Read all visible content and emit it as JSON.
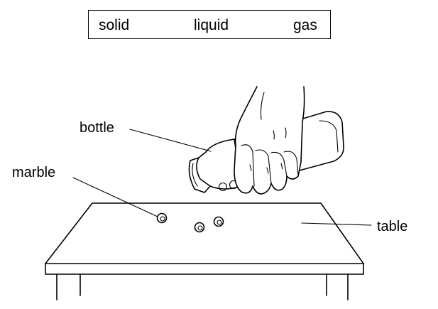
{
  "word_bank": {
    "words": [
      "solid",
      "liquid",
      "gas"
    ]
  },
  "labels": {
    "bottle": "bottle",
    "marble": "marble",
    "table": "table"
  },
  "colors": {
    "line": "#000000",
    "background": "#ffffff"
  }
}
